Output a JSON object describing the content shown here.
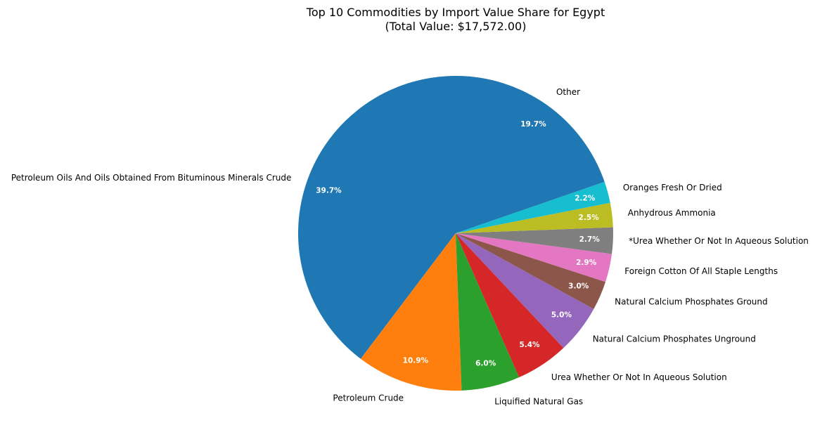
{
  "chart_data": {
    "type": "pie",
    "title": "Top 10 Commodities by Import Value Share for Egypt",
    "subtitle": "(Total Value: $17,572.00)",
    "slices": [
      {
        "label": "Petroleum Oils And Oils Obtained From Bituminous Minerals Crude",
        "value": 39.7,
        "pct_label": "39.7%",
        "color": "#1f77b4"
      },
      {
        "label": "Petroleum Crude",
        "value": 10.9,
        "pct_label": "10.9%",
        "color": "#ff7f0e"
      },
      {
        "label": "Liquified Natural Gas",
        "value": 6.0,
        "pct_label": "6.0%",
        "color": "#2ca02c"
      },
      {
        "label": "Urea Whether Or Not In Aqueous Solution",
        "value": 5.4,
        "pct_label": "5.4%",
        "color": "#d62728"
      },
      {
        "label": "Natural Calcium Phosphates Unground",
        "value": 5.0,
        "pct_label": "5.0%",
        "color": "#9467bd"
      },
      {
        "label": "Natural Calcium Phosphates Ground",
        "value": 3.0,
        "pct_label": "3.0%",
        "color": "#8c564b"
      },
      {
        "label": "Foreign Cotton Of All Staple Lengths",
        "value": 2.9,
        "pct_label": "2.9%",
        "color": "#e377c2"
      },
      {
        "label": "*Urea Whether Or Not In Aqueous Solution",
        "value": 2.7,
        "pct_label": "2.7%",
        "color": "#7f7f7f"
      },
      {
        "label": "Anhydrous Ammonia",
        "value": 2.5,
        "pct_label": "2.5%",
        "color": "#bcbd22"
      },
      {
        "label": "Oranges Fresh Or Dried",
        "value": 2.2,
        "pct_label": "2.2%",
        "color": "#17becf"
      },
      {
        "label": "Other",
        "value": 19.7,
        "pct_label": "19.7%",
        "color": "#1f77b4"
      }
    ],
    "start_angle_deg": 90,
    "direction": "counterclockwise",
    "legend": "none"
  }
}
